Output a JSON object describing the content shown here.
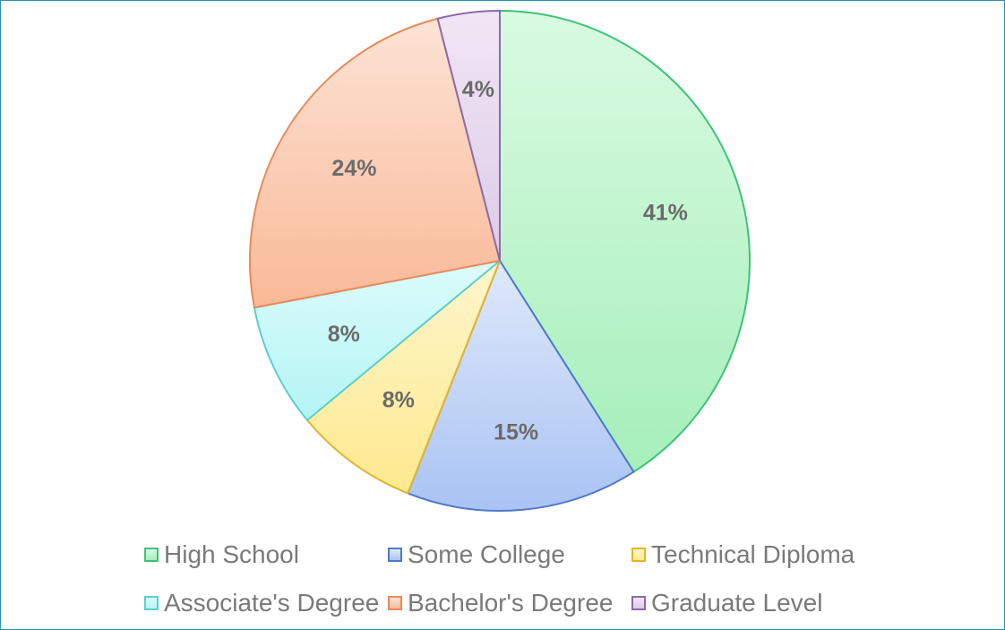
{
  "chart_data": {
    "type": "pie",
    "title": "",
    "series": [
      {
        "name": "",
        "labels": [
          "High School",
          "Some College",
          "Technical Diploma",
          "Associate's Degree",
          "Bachelor's Degree",
          "Graduate Level"
        ],
        "values": [
          41,
          15,
          8,
          8,
          24,
          4
        ]
      }
    ],
    "slices": [
      {
        "label": "High School",
        "value": 41,
        "value_label": "41%",
        "fill_top": "#d9fbe1",
        "fill_bottom": "#a6efbb",
        "stroke": "#3fc27a"
      },
      {
        "label": "Some College",
        "value": 15,
        "value_label": "15%",
        "fill_top": "#dfe9fb",
        "fill_bottom": "#a9c3f3",
        "stroke": "#5078c8"
      },
      {
        "label": "Technical Diploma",
        "value": 8,
        "value_label": "8%",
        "fill_top": "#fff6cc",
        "fill_bottom": "#fde98f",
        "stroke": "#e2b52a"
      },
      {
        "label": "Associate's Degree",
        "value": 8,
        "value_label": "8%",
        "fill_top": "#dcfcfc",
        "fill_bottom": "#b4f4f4",
        "stroke": "#5dcfcf"
      },
      {
        "label": "Bachelor's Degree",
        "value": 24,
        "value_label": "24%",
        "fill_top": "#fde3d5",
        "fill_bottom": "#f9b997",
        "stroke": "#e88a5c"
      },
      {
        "label": "Graduate Level",
        "value": 4,
        "value_label": "4%",
        "fill_top": "#f1e6f5",
        "fill_bottom": "#dccbe8",
        "stroke": "#8c6ba8"
      }
    ],
    "start_angle_deg": 0,
    "direction": "clockwise",
    "legend_position": "bottom",
    "data_labels": true
  }
}
